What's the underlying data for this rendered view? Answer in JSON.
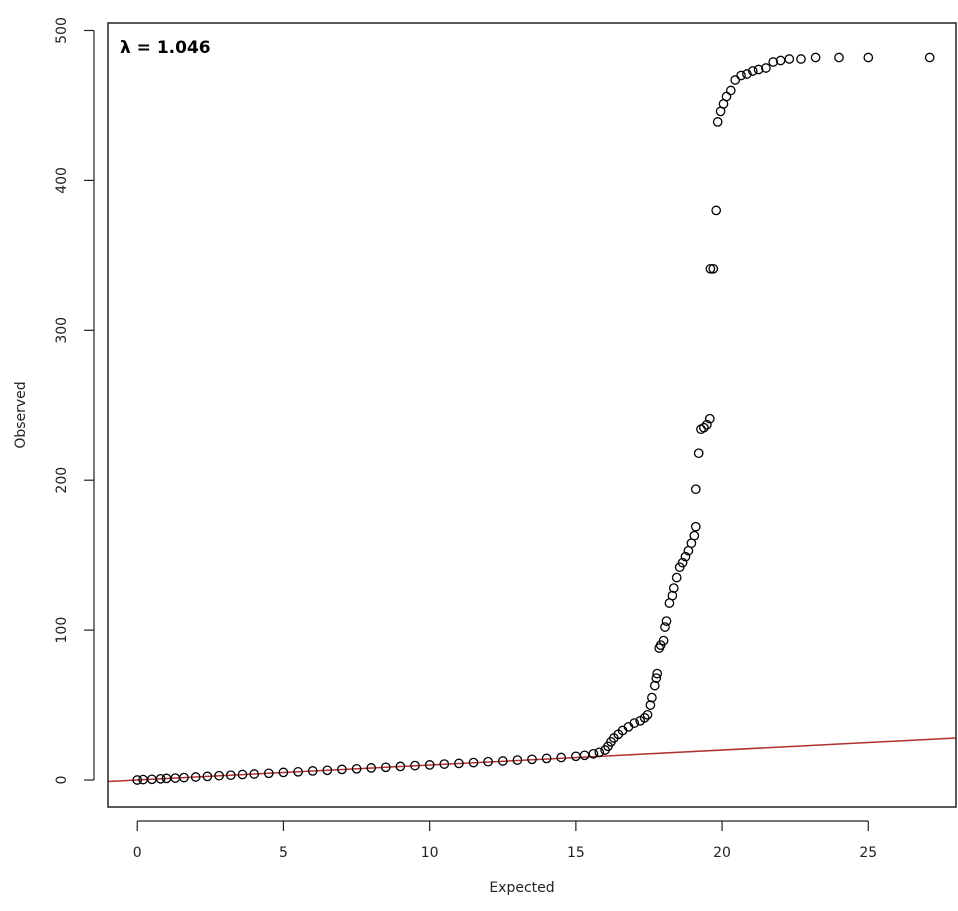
{
  "chart_data": {
    "type": "scatter",
    "title": "",
    "xlabel": "Expected",
    "ylabel": "Observed",
    "xlim": [
      -1,
      28
    ],
    "ylim": [
      -18,
      505
    ],
    "x_ticks": [
      0,
      5,
      10,
      15,
      20,
      25
    ],
    "y_ticks": [
      0,
      100,
      200,
      300,
      400,
      500
    ],
    "grid": false,
    "annotation": "λ = 1.046",
    "reference_line": {
      "type": "y=x",
      "color": "#b03030"
    },
    "point_color": "#000000",
    "series": [
      {
        "points": [
          [
            0.0,
            0.0
          ],
          [
            0.2,
            0.3
          ],
          [
            0.5,
            0.5
          ],
          [
            0.8,
            0.8
          ],
          [
            1.0,
            1.1
          ],
          [
            1.3,
            1.3
          ],
          [
            1.6,
            1.6
          ],
          [
            2.0,
            2.0
          ],
          [
            2.4,
            2.4
          ],
          [
            2.8,
            2.9
          ],
          [
            3.2,
            3.2
          ],
          [
            3.6,
            3.7
          ],
          [
            4.0,
            4.0
          ],
          [
            4.5,
            4.5
          ],
          [
            5.0,
            5.1
          ],
          [
            5.5,
            5.5
          ],
          [
            6.0,
            6.1
          ],
          [
            6.5,
            6.5
          ],
          [
            7.0,
            7.1
          ],
          [
            7.5,
            7.5
          ],
          [
            8.0,
            8.1
          ],
          [
            8.5,
            8.5
          ],
          [
            9.0,
            9.1
          ],
          [
            9.5,
            9.6
          ],
          [
            10.0,
            10.1
          ],
          [
            10.5,
            10.6
          ],
          [
            11.0,
            11.1
          ],
          [
            11.5,
            11.6
          ],
          [
            12.0,
            12.2
          ],
          [
            12.5,
            12.7
          ],
          [
            13.0,
            13.3
          ],
          [
            13.5,
            13.8
          ],
          [
            14.0,
            14.4
          ],
          [
            14.5,
            15.0
          ],
          [
            15.0,
            15.8
          ],
          [
            15.3,
            16.5
          ],
          [
            15.6,
            17.5
          ],
          [
            15.8,
            18.5
          ],
          [
            16.0,
            20.0
          ],
          [
            16.1,
            22.5
          ],
          [
            16.2,
            25.5
          ],
          [
            16.3,
            28.0
          ],
          [
            16.45,
            30.5
          ],
          [
            16.6,
            33.0
          ],
          [
            16.8,
            35.5
          ],
          [
            17.0,
            38.0
          ],
          [
            17.2,
            39.5
          ],
          [
            17.35,
            41.5
          ],
          [
            17.45,
            43.5
          ],
          [
            17.55,
            50.0
          ],
          [
            17.6,
            55.0
          ],
          [
            17.7,
            63.0
          ],
          [
            17.75,
            68.0
          ],
          [
            17.78,
            71.0
          ],
          [
            17.85,
            88.0
          ],
          [
            17.9,
            90.0
          ],
          [
            18.0,
            93.0
          ],
          [
            18.05,
            102.0
          ],
          [
            18.1,
            106.0
          ],
          [
            18.2,
            118.0
          ],
          [
            18.3,
            123.0
          ],
          [
            18.35,
            128.0
          ],
          [
            18.45,
            135.0
          ],
          [
            18.55,
            142.0
          ],
          [
            18.65,
            145.0
          ],
          [
            18.75,
            149.0
          ],
          [
            18.85,
            153.0
          ],
          [
            18.95,
            158.0
          ],
          [
            19.05,
            163.0
          ],
          [
            19.1,
            169.0
          ],
          [
            19.1,
            194.0
          ],
          [
            19.2,
            218.0
          ],
          [
            19.28,
            234.0
          ],
          [
            19.38,
            235.0
          ],
          [
            19.48,
            237.0
          ],
          [
            19.58,
            241.0
          ],
          [
            19.6,
            341.0
          ],
          [
            19.7,
            341.0
          ],
          [
            19.8,
            380.0
          ],
          [
            19.85,
            439.0
          ],
          [
            19.95,
            446.0
          ],
          [
            20.05,
            451.0
          ],
          [
            20.15,
            456.0
          ],
          [
            20.3,
            460.0
          ],
          [
            20.45,
            467.0
          ],
          [
            20.65,
            470.0
          ],
          [
            20.85,
            471.0
          ],
          [
            21.05,
            473.0
          ],
          [
            21.25,
            474.0
          ],
          [
            21.5,
            475.0
          ],
          [
            21.75,
            479.0
          ],
          [
            22.0,
            480.0
          ],
          [
            22.3,
            481.0
          ],
          [
            22.7,
            481.0
          ],
          [
            23.2,
            482.0
          ],
          [
            24.0,
            482.0
          ],
          [
            25.0,
            482.0
          ],
          [
            27.1,
            482.0
          ]
        ]
      }
    ]
  }
}
